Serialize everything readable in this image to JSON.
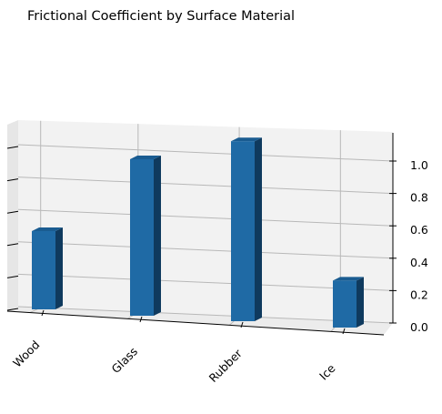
{
  "chart_data": {
    "type": "bar",
    "title": "Frictional Coefficient by Surface Material",
    "categories": [
      "Wood",
      "Glass",
      "Rubber",
      "Ice"
    ],
    "values": [
      0.5,
      1.0,
      1.15,
      0.3
    ],
    "xlabel": "",
    "ylabel": "",
    "ylim": [
      0,
      1.15
    ],
    "yticks": [
      "0.0",
      "0.2",
      "0.4",
      "0.6",
      "0.8",
      "1.0"
    ],
    "grid": true,
    "projection": "3d",
    "colors": {
      "bar_front": "#1f6aa5",
      "bar_top": "#1a5c91",
      "bar_side": "#0f3a5e",
      "pane": "#f2f2f2",
      "grid": "#b8b8b8"
    }
  }
}
